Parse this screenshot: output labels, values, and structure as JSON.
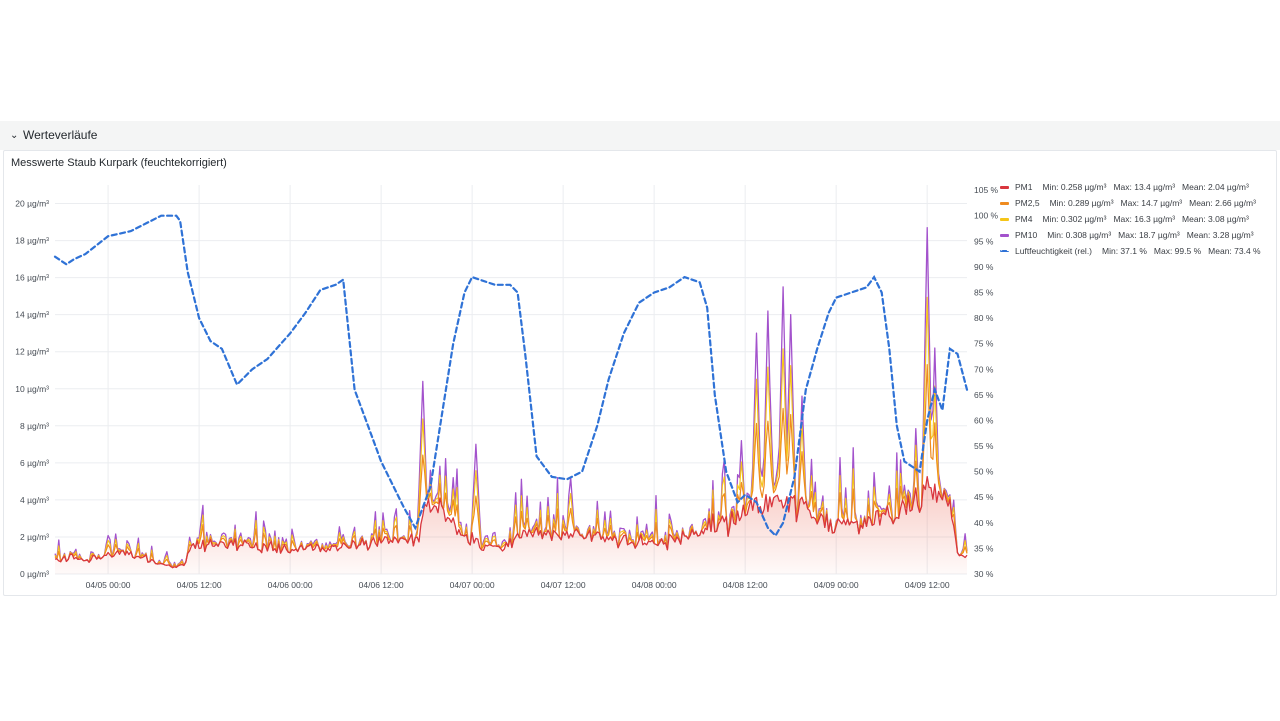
{
  "row": {
    "title": "Werteverläufe",
    "chevron": "⌄"
  },
  "panel": {
    "title": "Messwerte Staub Kurpark (feuchtekorrigiert)"
  },
  "legend": [
    {
      "name": "PM1",
      "min": "Min: 0.258 µg/m³",
      "max": "Max: 13.4 µg/m³",
      "mean": "Mean: 2.04 µg/m³",
      "color": "#d9363e",
      "style": "solid"
    },
    {
      "name": "PM2,5",
      "min": "Min: 0.289 µg/m³",
      "max": "Max: 14.7 µg/m³",
      "mean": "Mean: 2.66 µg/m³",
      "color": "#ef8b1f",
      "style": "solid"
    },
    {
      "name": "PM4",
      "min": "Min: 0.302 µg/m³",
      "max": "Max: 16.3 µg/m³",
      "mean": "Mean: 3.08 µg/m³",
      "color": "#f5c518",
      "style": "solid"
    },
    {
      "name": "PM10",
      "min": "Min: 0.308 µg/m³",
      "max": "Max: 18.7 µg/m³",
      "mean": "Mean: 3.28 µg/m³",
      "color": "#a352cc",
      "style": "solid"
    },
    {
      "name": "Luftfeuchtigkeit (rel.)",
      "min": "Min: 37.1 %",
      "max": "Max: 99.5 %",
      "mean": "Mean: 73.4 %",
      "color": "#2f72d6",
      "style": "dashed"
    }
  ],
  "chart_data": {
    "type": "line",
    "title": "Messwerte Staub Kurpark (feuchtekorrigiert)",
    "x_start": "04/04 17:00",
    "x_end": "04/09 17:15",
    "x_ticks": [
      "04/05 00:00",
      "04/05 12:00",
      "04/06 00:00",
      "04/06 12:00",
      "04/07 00:00",
      "04/07 12:00",
      "04/08 00:00",
      "04/08 12:00",
      "04/09 00:00",
      "04/09 12:00"
    ],
    "y_left": {
      "unit": "µg/m³",
      "min": 0,
      "max": 21,
      "ticks": [
        "0 µg/m³",
        "2 µg/m³",
        "4 µg/m³",
        "6 µg/m³",
        "8 µg/m³",
        "10 µg/m³",
        "12 µg/m³",
        "14 µg/m³",
        "16 µg/m³",
        "18 µg/m³",
        "20 µg/m³"
      ]
    },
    "y_right": {
      "unit": "%",
      "min": 30,
      "max": 106,
      "ticks": [
        "30 %",
        "35 %",
        "40 %",
        "45 %",
        "50 %",
        "55 %",
        "60 %",
        "65 %",
        "70 %",
        "75 %",
        "80 %",
        "85 %",
        "90 %",
        "95 %",
        "100 %",
        "105 %"
      ]
    },
    "grid": true,
    "legend_position": "right",
    "pm_series": [
      {
        "name": "PM1",
        "color": "#d9363e",
        "fill": true,
        "fill_color": "#e8543f",
        "width": 1.3
      },
      {
        "name": "PM2,5",
        "color": "#ef8b1f",
        "fill": false,
        "width": 1.2
      },
      {
        "name": "PM4",
        "color": "#f5c518",
        "fill": false,
        "width": 1.1
      },
      {
        "name": "PM10",
        "color": "#a352cc",
        "fill": false,
        "width": 1.3
      }
    ],
    "pm_base_points": [
      [
        "04/04 17:00",
        0.7
      ],
      [
        "04/04 19:00",
        1.0
      ],
      [
        "04/04 21:00",
        0.8
      ],
      [
        "04/05 00:00",
        1.1
      ],
      [
        "04/05 03:00",
        1.1
      ],
      [
        "04/05 05:00",
        0.9
      ],
      [
        "04/05 07:00",
        0.6
      ],
      [
        "04/05 09:00",
        0.4
      ],
      [
        "04/05 10:00",
        0.5
      ],
      [
        "04/05 11:00",
        1.5
      ],
      [
        "04/05 13:00",
        1.7
      ],
      [
        "04/05 16:00",
        1.7
      ],
      [
        "04/05 20:00",
        1.6
      ],
      [
        "04/06 00:00",
        1.5
      ],
      [
        "04/06 05:00",
        1.4
      ],
      [
        "04/06 07:00",
        1.5
      ],
      [
        "04/06 09:00",
        1.8
      ],
      [
        "04/06 12:00",
        1.9
      ],
      [
        "04/06 17:00",
        2.0
      ],
      [
        "04/06 18:00",
        4.0
      ],
      [
        "04/06 20:00",
        3.6
      ],
      [
        "04/06 22:00",
        2.4
      ],
      [
        "04/07 00:00",
        2.0
      ],
      [
        "04/07 01:30",
        1.4
      ],
      [
        "04/07 04:00",
        1.4
      ],
      [
        "04/07 06:00",
        2.2
      ],
      [
        "04/07 09:00",
        2.3
      ],
      [
        "04/07 12:00",
        2.1
      ],
      [
        "04/07 15:00",
        2.4
      ],
      [
        "04/07 17:00",
        2.0
      ],
      [
        "04/07 20:00",
        1.9
      ],
      [
        "04/08 00:00",
        1.8
      ],
      [
        "04/08 03:00",
        1.9
      ],
      [
        "04/08 06:00",
        2.4
      ],
      [
        "04/08 08:00",
        3.0
      ],
      [
        "04/08 10:00",
        2.8
      ],
      [
        "04/08 11:00",
        3.3
      ],
      [
        "04/08 14:00",
        3.7
      ],
      [
        "04/08 17:00",
        4.0
      ],
      [
        "04/08 19:00",
        3.8
      ],
      [
        "04/08 21:00",
        3.1
      ],
      [
        "04/09 00:00",
        2.9
      ],
      [
        "04/09 03:00",
        2.8
      ],
      [
        "04/09 06:00",
        3.1
      ],
      [
        "04/09 08:00",
        3.5
      ],
      [
        "04/09 10:00",
        3.9
      ],
      [
        "04/09 12:00",
        4.6
      ],
      [
        "04/09 13:30",
        4.4
      ],
      [
        "04/09 15:00",
        3.6
      ],
      [
        "04/09 16:00",
        1.4
      ],
      [
        "04/09 17:15",
        0.9
      ]
    ],
    "pm_peaks": [
      [
        "04/06 17:30",
        10.4
      ],
      [
        "04/06 18:30",
        5.6
      ],
      [
        "04/06 21:30",
        5.2
      ],
      [
        "04/07 00:30",
        7.0
      ],
      [
        "04/07 13:00",
        5.2
      ],
      [
        "04/08 11:30",
        7.2
      ],
      [
        "04/08 13:30",
        13.0
      ],
      [
        "04/08 15:00",
        14.2
      ],
      [
        "04/08 17:00",
        15.5
      ],
      [
        "04/08 18:00",
        14.0
      ],
      [
        "04/08 19:30",
        9.6
      ],
      [
        "04/09 10:30",
        7.0
      ],
      [
        "04/09 12:00",
        18.7
      ],
      [
        "04/09 13:00",
        12.2
      ]
    ],
    "humidity_series": {
      "name": "Luftfeuchtigkeit (rel.)",
      "unit": "%",
      "color": "#2f72d6",
      "dashed": true,
      "points": [
        [
          "04/04 17:00",
          92
        ],
        [
          "04/04 18:30",
          90.5
        ],
        [
          "04/04 19:30",
          91.5
        ],
        [
          "04/04 21:00",
          92.5
        ],
        [
          "04/05 00:00",
          96
        ],
        [
          "04/05 03:00",
          97
        ],
        [
          "04/05 05:00",
          98.5
        ],
        [
          "04/05 07:00",
          100
        ],
        [
          "04/05 09:00",
          100
        ],
        [
          "04/05 09:30",
          99
        ],
        [
          "04/05 10:30",
          89
        ],
        [
          "04/05 12:00",
          80
        ],
        [
          "04/05 13:30",
          75.5
        ],
        [
          "04/05 15:00",
          74
        ],
        [
          "04/05 17:00",
          67
        ],
        [
          "04/05 19:00",
          70
        ],
        [
          "04/05 21:00",
          72
        ],
        [
          "04/06 00:00",
          77
        ],
        [
          "04/06 02:00",
          81
        ],
        [
          "04/06 04:00",
          85.5
        ],
        [
          "04/06 06:00",
          86.5
        ],
        [
          "04/06 07:00",
          87.5
        ],
        [
          "04/06 08:30",
          66
        ],
        [
          "04/06 10:00",
          60
        ],
        [
          "04/06 12:00",
          52
        ],
        [
          "04/06 15:00",
          43
        ],
        [
          "04/06 16:30",
          39
        ],
        [
          "04/06 18:30",
          47
        ],
        [
          "04/06 20:00",
          61
        ],
        [
          "04/06 21:30",
          75
        ],
        [
          "04/06 23:00",
          85
        ],
        [
          "04/07 00:00",
          88
        ],
        [
          "04/07 03:00",
          86.5
        ],
        [
          "04/07 05:00",
          86.5
        ],
        [
          "04/07 06:00",
          85
        ],
        [
          "04/07 07:00",
          73
        ],
        [
          "04/07 08:30",
          53
        ],
        [
          "04/07 10:30",
          49
        ],
        [
          "04/07 12:30",
          48.5
        ],
        [
          "04/07 14:30",
          50
        ],
        [
          "04/07 16:30",
          59
        ],
        [
          "04/07 18:00",
          68
        ],
        [
          "04/07 20:00",
          77
        ],
        [
          "04/07 22:00",
          83
        ],
        [
          "04/08 00:00",
          85
        ],
        [
          "04/08 02:00",
          86
        ],
        [
          "04/08 04:00",
          88
        ],
        [
          "04/08 06:00",
          87
        ],
        [
          "04/08 07:00",
          82
        ],
        [
          "04/08 08:00",
          65
        ],
        [
          "04/08 09:30",
          50
        ],
        [
          "04/08 11:00",
          44
        ],
        [
          "04/08 12:00",
          45.5
        ],
        [
          "04/08 13:30",
          44
        ],
        [
          "04/08 15:00",
          39
        ],
        [
          "04/08 16:00",
          37.5
        ],
        [
          "04/08 17:00",
          40
        ],
        [
          "04/08 18:30",
          49
        ],
        [
          "04/08 20:00",
          66
        ],
        [
          "04/08 21:30",
          74
        ],
        [
          "04/08 23:00",
          81
        ],
        [
          "04/09 00:00",
          84
        ],
        [
          "04/09 02:00",
          85
        ],
        [
          "04/09 04:00",
          86
        ],
        [
          "04/09 05:00",
          88
        ],
        [
          "04/09 06:00",
          85
        ],
        [
          "04/09 07:00",
          74
        ],
        [
          "04/09 08:00",
          59
        ],
        [
          "04/09 09:00",
          52
        ],
        [
          "04/09 10:00",
          51
        ],
        [
          "04/09 11:00",
          50
        ],
        [
          "04/09 12:00",
          60
        ],
        [
          "04/09 13:00",
          66
        ],
        [
          "04/09 14:00",
          62
        ],
        [
          "04/09 15:00",
          74
        ],
        [
          "04/09 16:00",
          73
        ],
        [
          "04/09 17:15",
          66
        ]
      ]
    }
  }
}
